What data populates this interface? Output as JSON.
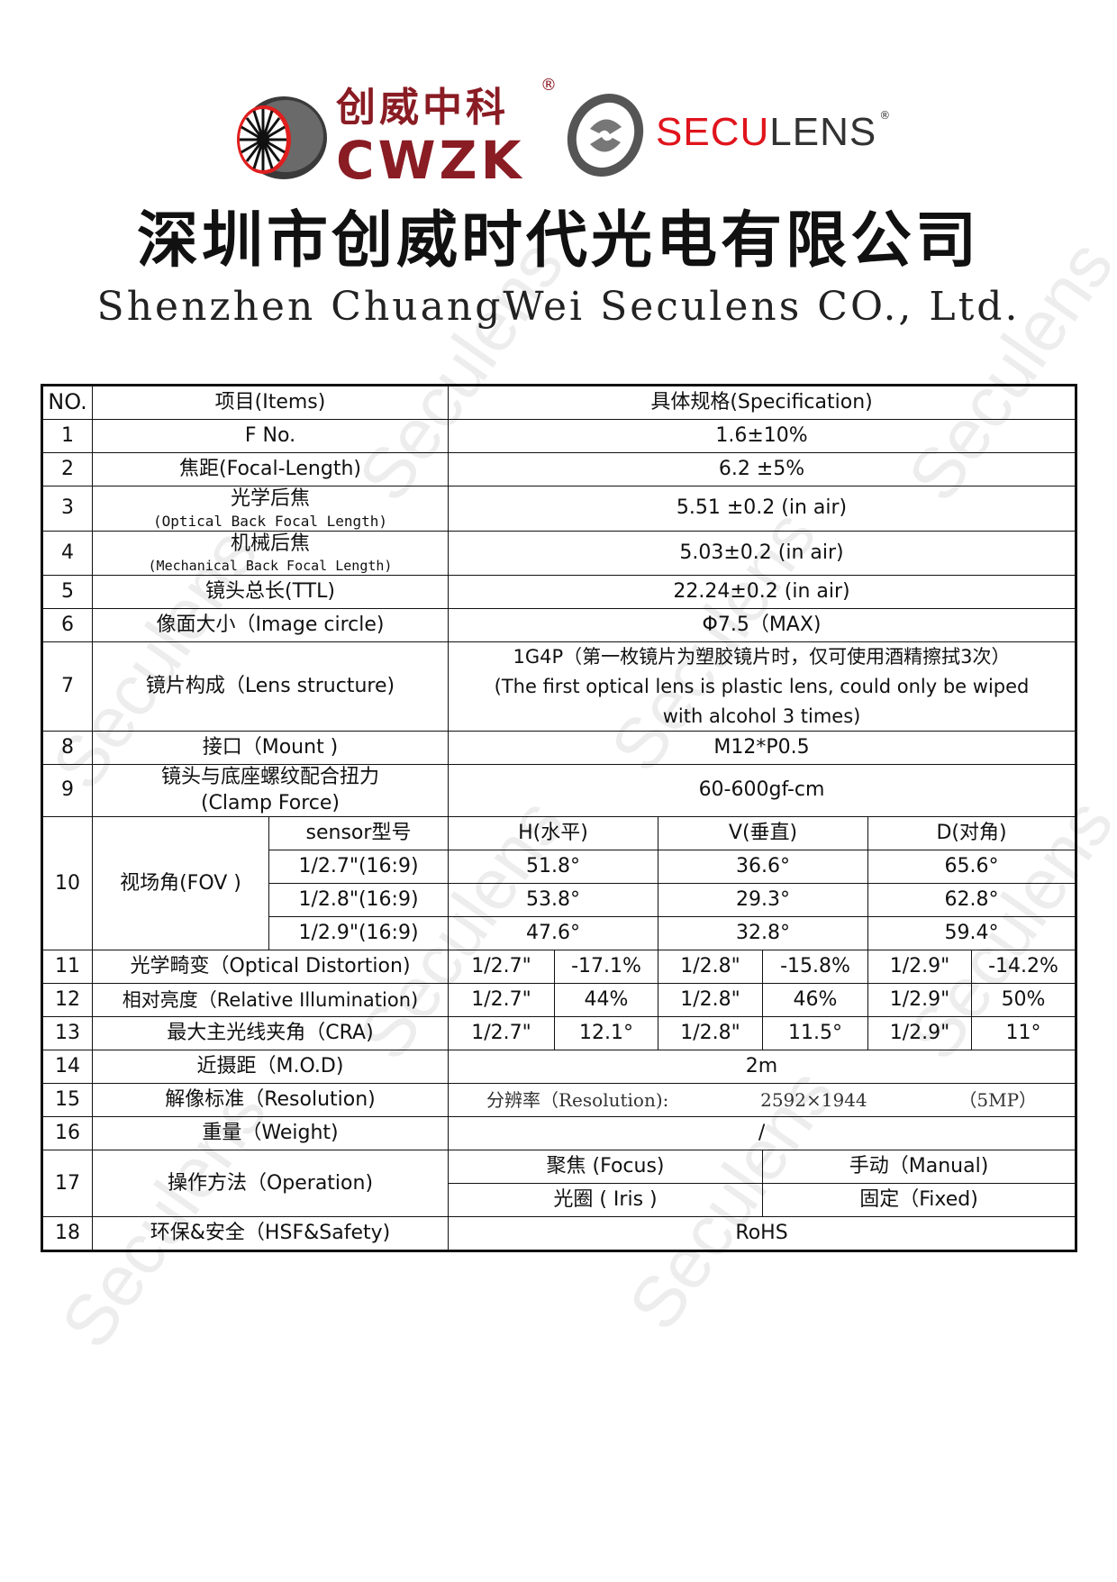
{
  "header": {
    "cwzk_logo_cn": "创威中科",
    "cwzk_logo_en": "CWZK",
    "seculens_logo_red": "SECU",
    "seculens_logo_dark": "LENS",
    "registered_mark": "®",
    "company_name_cn": "深圳市创威时代光电有限公司",
    "company_name_en": "Shenzhen ChuangWei Seculens CO., Ltd."
  },
  "watermark": "Seculens",
  "colors": {
    "brand_red": "#8a1c24",
    "seculens_red": "#e0141c"
  },
  "table": {
    "headers": {
      "no": "NO.",
      "items": "项目(Items)",
      "spec": "具体规格(Specification)"
    },
    "rows": [
      {
        "no": "1",
        "item": "F No.",
        "spec": "1.6±10%"
      },
      {
        "no": "2",
        "item": "焦距(Focal-Length)",
        "spec": "6.2 ±5%"
      },
      {
        "no": "3",
        "item": "光学后焦",
        "item_sub": "(Optical Back Focal Length)",
        "spec": "5.51 ±0.2 (in  air)"
      },
      {
        "no": "4",
        "item": "机械后焦",
        "item_sub": "(Mechanical Back Focal Length)",
        "spec": "5.03±0.2 (in  air)"
      },
      {
        "no": "5",
        "item": "镜头总长(TTL)",
        "spec": "22.24±0.2  (in air)"
      },
      {
        "no": "6",
        "item": "像面大小（Image circle)",
        "spec": "Φ7.5（MAX)"
      },
      {
        "no": "7",
        "item": "镜片构成（Lens structure)",
        "spec_lines": [
          "1G4P（第一枚镜片为塑胶镜片时，仅可使用酒精擦拭3次）",
          "(The first optical lens is plastic lens, could only be wiped",
          "with alcohol 3 times)"
        ]
      },
      {
        "no": "8",
        "item": "接口（Mount )",
        "spec": "M12*P0.5"
      },
      {
        "no": "9",
        "item": "镜头与底座螺纹配合扭力",
        "item_sub": "(Clamp Force)",
        "spec": "60-600gf-cm"
      }
    ],
    "fov": {
      "no": "10",
      "item": "视场角(FOV )",
      "col_headers": [
        "sensor型号",
        "H(水平)",
        "V(垂直)",
        "D(对角)"
      ],
      "rows": [
        [
          "1/2.7\"(16:9)",
          "51.8°",
          "36.6°",
          "65.6°"
        ],
        [
          "1/2.8\"(16:9)",
          "53.8°",
          "29.3°",
          "62.8°"
        ],
        [
          "1/2.9\"(16:9)",
          "47.6°",
          "32.8°",
          "59.4°"
        ]
      ]
    },
    "split_rows": [
      {
        "no": "11",
        "item": "光学畸变（Optical Distortion)",
        "cells": [
          "1/2.7\"",
          "-17.1%",
          "1/2.8\"",
          "-15.8%",
          "1/2.9\"",
          "-14.2%"
        ]
      },
      {
        "no": "12",
        "item": "相对亮度（Relative Illumination)",
        "cells": [
          "1/2.7\"",
          "44%",
          "1/2.8\"",
          "46%",
          "1/2.9\"",
          "50%"
        ]
      },
      {
        "no": "13",
        "item": "最大主光线夹角（CRA)",
        "cells": [
          "1/2.7\"",
          "12.1°",
          "1/2.8\"",
          "11.5°",
          "1/2.9\"",
          "11°"
        ]
      }
    ],
    "row14": {
      "no": "14",
      "item": "近摄距（M.O.D)",
      "spec": "2m"
    },
    "row15": {
      "no": "15",
      "item": "解像标准（Resolution)",
      "spec_label": "分辨率（Resolution):",
      "spec_value": "2592×1944",
      "spec_mp": "（5MP）"
    },
    "row16": {
      "no": "16",
      "item": "重量（Weight)",
      "spec": "/"
    },
    "row17": {
      "no": "17",
      "item": "操作方法（Operation)",
      "cells": [
        [
          "聚焦 (Focus)",
          "手动（Manual)"
        ],
        [
          "光圈 ( Iris )",
          "固定（Fixed)"
        ]
      ]
    },
    "row18": {
      "no": "18",
      "item": "环保&安全（HSF&Safety)",
      "spec": "RoHS"
    }
  }
}
